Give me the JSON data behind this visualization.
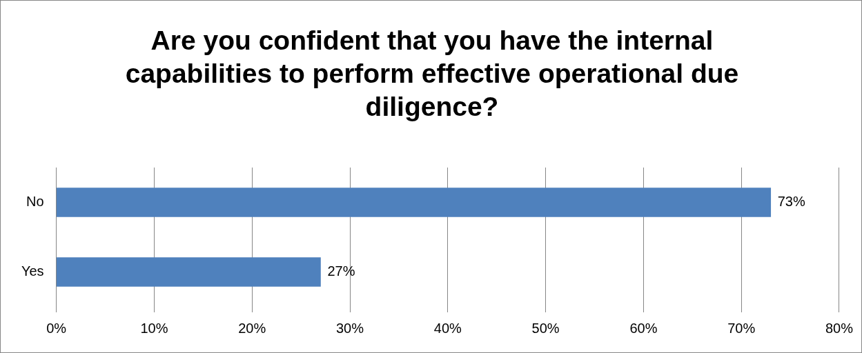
{
  "chart_data": {
    "type": "bar",
    "orientation": "horizontal",
    "title": "Are you confident that you have the internal capabilities to perform effective operational due diligence?",
    "categories": [
      "No",
      "Yes"
    ],
    "values": [
      73,
      27
    ],
    "value_labels": [
      "73%",
      "27%"
    ],
    "color": "#4f81bd",
    "xlim": [
      0,
      80
    ],
    "xticks": [
      {
        "value": 0,
        "label": "0%"
      },
      {
        "value": 10,
        "label": "10%"
      },
      {
        "value": 20,
        "label": "20%"
      },
      {
        "value": 30,
        "label": "30%"
      },
      {
        "value": 40,
        "label": "40%"
      },
      {
        "value": 50,
        "label": "50%"
      },
      {
        "value": 60,
        "label": "60%"
      },
      {
        "value": 70,
        "label": "70%"
      },
      {
        "value": 80,
        "label": "80%"
      }
    ],
    "grid": "x",
    "legend": false
  }
}
